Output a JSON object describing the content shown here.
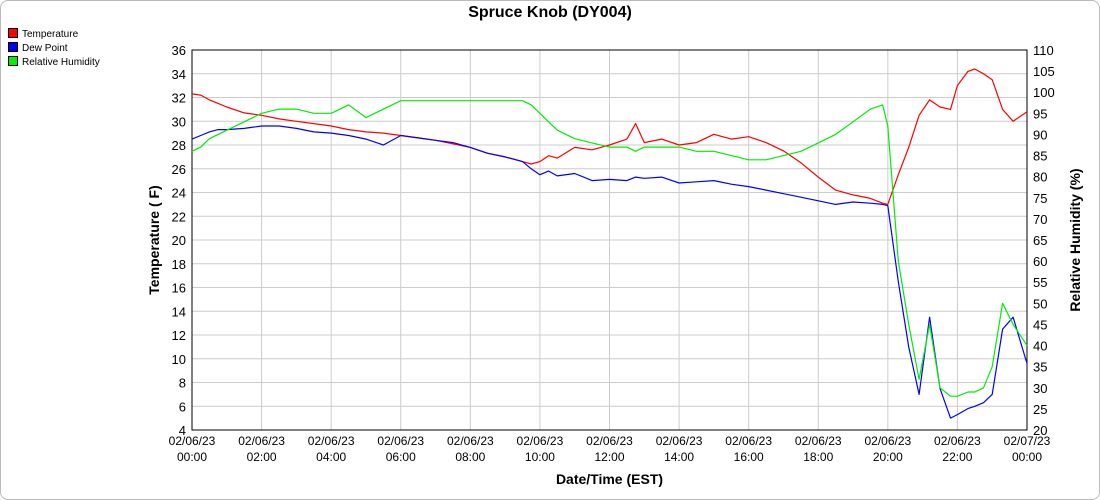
{
  "chart_data": {
    "type": "line",
    "title": "Spruce Knob (DY004)",
    "xlabel": "Date/Time (EST)",
    "ylabel_left": "Temperature ( F)",
    "ylabel_right": "Relative Humidity (%)",
    "ylim_left": [
      4,
      36
    ],
    "ylim_right": [
      20,
      110
    ],
    "y_ticks_left": [
      4,
      6,
      8,
      10,
      12,
      14,
      16,
      18,
      20,
      22,
      24,
      26,
      28,
      30,
      32,
      34,
      36
    ],
    "y_ticks_right": [
      20,
      25,
      30,
      35,
      40,
      45,
      50,
      55,
      60,
      65,
      70,
      75,
      80,
      85,
      90,
      95,
      100,
      105,
      110
    ],
    "x_range_hours": [
      0,
      24
    ],
    "x_ticks": [
      {
        "hour": 0,
        "date": "02/06/23",
        "time": "00:00"
      },
      {
        "hour": 2,
        "date": "02/06/23",
        "time": "02:00"
      },
      {
        "hour": 4,
        "date": "02/06/23",
        "time": "04:00"
      },
      {
        "hour": 6,
        "date": "02/06/23",
        "time": "06:00"
      },
      {
        "hour": 8,
        "date": "02/06/23",
        "time": "08:00"
      },
      {
        "hour": 10,
        "date": "02/06/23",
        "time": "10:00"
      },
      {
        "hour": 12,
        "date": "02/06/23",
        "time": "12:00"
      },
      {
        "hour": 14,
        "date": "02/06/23",
        "time": "14:00"
      },
      {
        "hour": 16,
        "date": "02/06/23",
        "time": "16:00"
      },
      {
        "hour": 18,
        "date": "02/06/23",
        "time": "18:00"
      },
      {
        "hour": 20,
        "date": "02/06/23",
        "time": "20:00"
      },
      {
        "hour": 22,
        "date": "02/06/23",
        "time": "22:00"
      },
      {
        "hour": 24,
        "date": "02/07/23",
        "time": "00:00"
      }
    ],
    "grid": true,
    "legend_position": "top-left",
    "series": [
      {
        "name": "Temperature",
        "color": "#ff0000",
        "axis": "left",
        "x": [
          0,
          0.25,
          0.5,
          0.75,
          1,
          1.5,
          2,
          2.5,
          3,
          3.5,
          4,
          4.5,
          5,
          5.5,
          6,
          6.5,
          7,
          7.5,
          8,
          8.5,
          9,
          9.5,
          9.75,
          10,
          10.25,
          10.5,
          11,
          11.5,
          12,
          12.5,
          12.75,
          13,
          13.5,
          14,
          14.5,
          15,
          15.5,
          16,
          16.5,
          17,
          17.5,
          18,
          18.5,
          19,
          19.5,
          19.85,
          20,
          20.3,
          20.6,
          20.9,
          21.2,
          21.5,
          21.8,
          22,
          22.3,
          22.5,
          22.75,
          23,
          23.3,
          23.6,
          24
        ],
        "y": [
          32.3,
          32.2,
          31.8,
          31.5,
          31.2,
          30.7,
          30.5,
          30.2,
          30.0,
          29.8,
          29.6,
          29.3,
          29.1,
          29.0,
          28.8,
          28.6,
          28.4,
          28.1,
          27.8,
          27.3,
          27.0,
          26.6,
          26.4,
          26.6,
          27.1,
          26.9,
          27.8,
          27.6,
          28.0,
          28.5,
          29.8,
          28.2,
          28.5,
          28.0,
          28.2,
          28.9,
          28.5,
          28.7,
          28.2,
          27.5,
          26.5,
          25.3,
          24.2,
          23.8,
          23.5,
          23.1,
          23.0,
          25.5,
          27.8,
          30.5,
          31.8,
          31.2,
          31.0,
          33.0,
          34.2,
          34.4,
          34.0,
          33.5,
          31.0,
          30.0,
          30.8
        ]
      },
      {
        "name": "Dew Point",
        "color": "#0000ff",
        "axis": "left",
        "x": [
          0,
          0.25,
          0.5,
          0.75,
          1,
          1.5,
          2,
          2.5,
          3,
          3.5,
          4,
          4.5,
          5,
          5.5,
          6,
          6.5,
          7,
          7.5,
          8,
          8.5,
          9,
          9.5,
          9.75,
          10,
          10.25,
          10.5,
          11,
          11.5,
          12,
          12.5,
          12.75,
          13,
          13.5,
          14,
          14.5,
          15,
          15.5,
          16,
          16.5,
          17,
          17.5,
          18,
          18.5,
          19,
          19.5,
          19.85,
          20,
          20.3,
          20.6,
          20.9,
          21.2,
          21.5,
          21.8,
          22,
          22.3,
          22.5,
          22.75,
          23,
          23.3,
          23.6,
          24
        ],
        "y": [
          28.5,
          28.8,
          29.1,
          29.3,
          29.3,
          29.4,
          29.6,
          29.6,
          29.4,
          29.1,
          29.0,
          28.8,
          28.5,
          28.0,
          28.8,
          28.6,
          28.4,
          28.2,
          27.8,
          27.3,
          27.0,
          26.6,
          26.0,
          25.5,
          25.8,
          25.4,
          25.6,
          25.0,
          25.1,
          25.0,
          25.3,
          25.2,
          25.3,
          24.8,
          24.9,
          25.0,
          24.7,
          24.5,
          24.2,
          23.9,
          23.6,
          23.3,
          23.0,
          23.2,
          23.1,
          23.0,
          22.9,
          16.5,
          11.0,
          7.0,
          13.5,
          7.5,
          5.0,
          5.3,
          5.8,
          6.0,
          6.3,
          7.0,
          12.5,
          13.5,
          9.6
        ]
      },
      {
        "name": "Relative Humidity",
        "color": "#00ee00",
        "axis": "right",
        "x": [
          0,
          0.25,
          0.5,
          0.75,
          1,
          1.5,
          2,
          2.5,
          3,
          3.5,
          4,
          4.5,
          5,
          5.5,
          6,
          6.5,
          7,
          7.5,
          8,
          8.5,
          9,
          9.5,
          9.75,
          10,
          10.25,
          10.5,
          11,
          11.5,
          12,
          12.5,
          12.75,
          13,
          13.5,
          14,
          14.5,
          15,
          15.5,
          16,
          16.5,
          17,
          17.5,
          18,
          18.5,
          19,
          19.5,
          19.85,
          20,
          20.3,
          20.6,
          20.9,
          21.2,
          21.5,
          21.8,
          22,
          22.3,
          22.5,
          22.75,
          23,
          23.3,
          23.6,
          24
        ],
        "y": [
          86,
          87,
          89,
          90,
          91,
          93,
          95,
          96,
          96,
          95,
          95,
          97,
          94,
          96,
          98,
          98,
          98,
          98,
          98,
          98,
          98,
          98,
          97,
          95,
          93,
          91,
          89,
          88,
          87,
          87,
          86,
          87,
          87,
          87,
          86,
          86,
          85,
          84,
          84,
          85,
          86,
          88,
          90,
          93,
          96,
          97,
          92,
          60,
          45,
          32,
          45,
          30,
          28,
          28,
          29,
          29,
          30,
          35,
          50,
          45,
          40
        ]
      }
    ]
  }
}
